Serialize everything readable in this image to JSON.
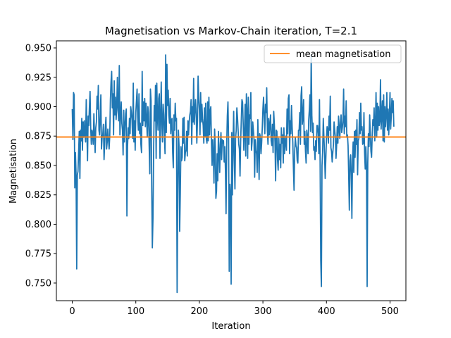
{
  "chart_data": {
    "type": "line",
    "title": "Magnetisation vs Markov-Chain iteration, T=2.1",
    "xlabel": "Iteration",
    "ylabel": "Magnetisation",
    "xlim": [
      -25,
      525
    ],
    "ylim": [
      0.735,
      0.956
    ],
    "xticks": [
      0,
      100,
      200,
      300,
      400,
      500
    ],
    "yticks": [
      0.75,
      0.775,
      0.8,
      0.825,
      0.85,
      0.875,
      0.9,
      0.925,
      0.95
    ],
    "grid": false,
    "legend_position": "top-right",
    "series": [
      {
        "name": "",
        "color": "#1f77b4",
        "x_start": 0,
        "x_step": 1,
        "values": [
          0.898,
          0.872,
          0.912,
          0.91,
          0.831,
          0.861,
          0.842,
          0.762,
          0.842,
          0.845,
          0.861,
          0.879,
          0.839,
          0.88,
          0.871,
          0.89,
          0.863,
          0.887,
          0.874,
          0.888,
          0.876,
          0.87,
          0.906,
          0.88,
          0.854,
          0.892,
          0.884,
          0.9,
          0.913,
          0.882,
          0.868,
          0.88,
          0.877,
          0.868,
          0.894,
          0.877,
          0.861,
          0.882,
          0.887,
          0.909,
          0.898,
          0.918,
          0.88,
          0.876,
          0.893,
          0.91,
          0.864,
          0.874,
          0.876,
          0.885,
          0.855,
          0.868,
          0.882,
          0.891,
          0.864,
          0.87,
          0.881,
          0.872,
          0.864,
          0.875,
          0.906,
          0.921,
          0.93,
          0.899,
          0.911,
          0.876,
          0.922,
          0.893,
          0.908,
          0.889,
          0.9,
          0.925,
          0.897,
          0.888,
          0.935,
          0.876,
          0.893,
          0.904,
          0.886,
          0.88,
          0.859,
          0.897,
          0.87,
          0.883,
          0.894,
          0.898,
          0.807,
          0.866,
          0.882,
          0.873,
          0.89,
          0.877,
          0.9,
          0.895,
          0.889,
          0.873,
          0.92,
          0.87,
          0.888,
          0.863,
          0.895,
          0.905,
          0.915,
          0.891,
          0.88,
          0.911,
          0.877,
          0.886,
          0.868,
          0.861,
          0.93,
          0.884,
          0.904,
          0.888,
          0.907,
          0.883,
          0.903,
          0.89,
          0.874,
          0.9,
          0.895,
          0.867,
          0.843,
          0.915,
          0.905,
          0.833,
          0.78,
          0.805,
          0.861,
          0.901,
          0.888,
          0.918,
          0.856,
          0.92,
          0.893,
          0.88,
          0.907,
          0.911,
          0.856,
          0.89,
          0.921,
          0.885,
          0.87,
          0.902,
          0.893,
          0.875,
          0.86,
          0.944,
          0.878,
          0.936,
          0.901,
          0.914,
          0.893,
          0.886,
          0.907,
          0.877,
          0.888,
          0.89,
          0.861,
          0.848,
          0.893,
          0.88,
          0.903,
          0.888,
          0.89,
          0.742,
          0.826,
          0.88,
          0.867,
          0.794,
          0.826,
          0.866,
          0.854,
          0.857,
          0.89,
          0.869,
          0.891,
          0.854,
          0.861,
          0.863,
          0.879,
          0.858,
          0.888,
          0.876,
          0.887,
          0.893,
          0.896,
          0.906,
          0.868,
          0.9,
          0.887,
          0.924,
          0.885,
          0.896,
          0.906,
          0.894,
          0.869,
          0.888,
          0.926,
          0.908,
          0.897,
          0.876,
          0.912,
          0.887,
          0.902,
          0.89,
          0.884,
          0.869,
          0.899,
          0.875,
          0.903,
          0.872,
          0.869,
          0.904,
          0.871,
          0.908,
          0.876,
          0.896,
          0.9,
          0.87,
          0.85,
          0.872,
          0.86,
          0.835,
          0.881,
          0.866,
          0.822,
          0.828,
          0.86,
          0.837,
          0.879,
          0.861,
          0.844,
          0.868,
          0.878,
          0.855,
          0.872,
          0.869,
          0.871,
          0.853,
          0.866,
          0.847,
          0.809,
          0.867,
          0.892,
          0.904,
          0.872,
          0.76,
          0.834,
          0.825,
          0.749,
          0.878,
          0.825,
          0.869,
          0.896,
          0.855,
          0.83,
          0.873,
          0.88,
          0.899,
          0.891,
          0.88,
          0.868,
          0.864,
          0.841,
          0.871,
          0.889,
          0.906,
          0.904,
          0.885,
          0.863,
          0.878,
          0.902,
          0.858,
          0.911,
          0.895,
          0.856,
          0.908,
          0.868,
          0.893,
          0.89,
          0.912,
          0.863,
          0.87,
          0.887,
          0.88,
          0.872,
          0.84,
          0.872,
          0.863,
          0.86,
          0.844,
          0.889,
          0.865,
          0.838,
          0.877,
          0.874,
          0.86,
          0.869,
          0.882,
          0.898,
          0.908,
          0.891,
          0.877,
          0.902,
          0.895,
          0.916,
          0.88,
          0.868,
          0.89,
          0.876,
          0.885,
          0.893,
          0.871,
          0.867,
          0.885,
          0.861,
          0.896,
          0.885,
          0.87,
          0.837,
          0.88,
          0.879,
          0.855,
          0.846,
          0.873,
          0.855,
          0.868,
          0.848,
          0.882,
          0.869,
          0.876,
          0.852,
          0.882,
          0.86,
          0.869,
          0.875,
          0.863,
          0.898,
          0.877,
          0.907,
          0.91,
          0.86,
          0.888,
          0.877,
          0.901,
          0.883,
          0.87,
          0.848,
          0.829,
          0.862,
          0.874,
          0.867,
          0.865,
          0.854,
          0.852,
          0.88,
          0.88,
          0.895,
          0.868,
          0.909,
          0.917,
          0.885,
          0.891,
          0.906,
          0.868,
          0.879,
          0.862,
          0.852,
          0.88,
          0.874,
          0.86,
          0.888,
          0.897,
          0.91,
          0.879,
          0.944,
          0.893,
          0.878,
          0.886,
          0.863,
          0.866,
          0.855,
          0.871,
          0.862,
          0.884,
          0.884,
          0.877,
          0.86,
          0.906,
          0.853,
          0.769,
          0.747,
          0.85,
          0.862,
          0.89,
          0.874,
          0.86,
          0.839,
          0.856,
          0.873,
          0.883,
          0.88,
          0.869,
          0.892,
          0.88,
          0.909,
          0.865,
          0.862,
          0.853,
          0.861,
          0.868,
          0.887,
          0.88,
          0.874,
          0.856,
          0.867,
          0.883,
          0.869,
          0.892,
          0.882,
          0.873,
          0.887,
          0.893,
          0.878,
          0.882,
          0.888,
          0.915,
          0.877,
          0.892,
          0.883,
          0.905,
          0.874,
          0.876,
          0.867,
          0.841,
          0.812,
          0.854,
          0.859,
          0.842,
          0.805,
          0.855,
          0.87,
          0.844,
          0.879,
          0.857,
          0.88,
          0.868,
          0.889,
          0.842,
          0.871,
          0.873,
          0.895,
          0.877,
          0.903,
          0.88,
          0.883,
          0.868,
          0.869,
          0.895,
          0.861,
          0.847,
          0.866,
          0.849,
          0.747,
          0.852,
          0.877,
          0.866,
          0.893,
          0.876,
          0.862,
          0.857,
          0.876,
          0.889,
          0.884,
          0.899,
          0.871,
          0.884,
          0.912,
          0.874,
          0.903,
          0.88,
          0.9,
          0.884,
          0.888,
          0.923,
          0.881,
          0.894,
          0.905,
          0.871,
          0.91,
          0.87,
          0.9,
          0.883,
          0.893,
          0.912,
          0.88,
          0.898,
          0.876,
          0.892,
          0.912,
          0.881,
          0.892,
          0.907,
          0.895,
          0.905,
          0.883
        ]
      },
      {
        "name": "mean magnetisation",
        "color": "#ff7f0e",
        "constant": 0.8742
      }
    ]
  }
}
